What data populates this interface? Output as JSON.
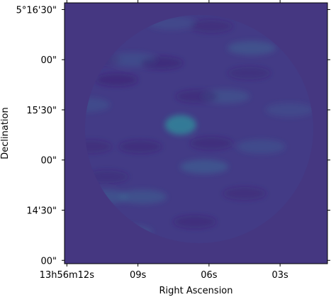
{
  "chart_data": {
    "type": "heatmap",
    "xlabel": "Right Ascension",
    "ylabel": "Declination",
    "x_ticks": [
      {
        "value": 12,
        "label": "13h56m12s"
      },
      {
        "value": 9,
        "label": "09s"
      },
      {
        "value": 6,
        "label": "06s"
      },
      {
        "value": 3,
        "label": "03s"
      }
    ],
    "y_ticks": [
      {
        "value": 0,
        "label": "00\""
      },
      {
        "value": 30,
        "label": "14'30\""
      },
      {
        "value": 60,
        "label": "00\""
      },
      {
        "value": 90,
        "label": "15'30\""
      },
      {
        "value": 120,
        "label": "00\""
      },
      {
        "value": 150,
        "label": "5°16'30\""
      }
    ],
    "x_range": [
      12.1,
      1.0
    ],
    "y_range": [
      -2,
      154
    ],
    "colormap": "viridis",
    "background_color": "#453781",
    "disk_color": "#433b86",
    "grid": false,
    "features": [
      {
        "name": "bright source",
        "x_s": 7.2,
        "y_arcsec": 81,
        "level": 0.95
      },
      {
        "name": "bright patch",
        "x_s": 6.2,
        "y_arcsec": 56,
        "level": 0.55
      },
      {
        "name": "bright patch",
        "x_s": 4.2,
        "y_arcsec": 127,
        "level": 0.5
      },
      {
        "name": "bright patch",
        "x_s": 8.8,
        "y_arcsec": 38,
        "level": 0.45
      },
      {
        "name": "bright patch",
        "x_s": 10.4,
        "y_arcsec": 38,
        "level": 0.45
      },
      {
        "name": "bright patch",
        "x_s": 9.4,
        "y_arcsec": 17,
        "level": 0.4
      },
      {
        "name": "bright patch",
        "x_s": 5.3,
        "y_arcsec": 98,
        "level": 0.4
      },
      {
        "name": "bright patch",
        "x_s": 11.2,
        "y_arcsec": 93,
        "level": 0.35
      },
      {
        "name": "bright patch",
        "x_s": 3.8,
        "y_arcsec": 68,
        "level": 0.35
      },
      {
        "name": "bright patch",
        "x_s": 9.2,
        "y_arcsec": 120,
        "level": 0.35
      },
      {
        "name": "bright patch",
        "x_s": 7.6,
        "y_arcsec": 142,
        "level": 0.3
      },
      {
        "name": "bright patch",
        "x_s": 2.6,
        "y_arcsec": 90,
        "level": 0.3
      },
      {
        "name": "dark patch",
        "x_s": 9.9,
        "y_arcsec": 108,
        "level": -0.6
      },
      {
        "name": "dark patch",
        "x_s": 8.0,
        "y_arcsec": 118,
        "level": -0.55
      },
      {
        "name": "dark patch",
        "x_s": 6.5,
        "y_arcsec": 98,
        "level": -0.5
      },
      {
        "name": "dark patch",
        "x_s": 8.9,
        "y_arcsec": 68,
        "level": -0.5
      },
      {
        "name": "dark patch",
        "x_s": 5.9,
        "y_arcsec": 70,
        "level": -0.5
      },
      {
        "name": "dark patch",
        "x_s": 11.0,
        "y_arcsec": 68,
        "level": -0.45
      },
      {
        "name": "dark patch",
        "x_s": 6.6,
        "y_arcsec": 23,
        "level": -0.5
      },
      {
        "name": "dark patch",
        "x_s": 4.5,
        "y_arcsec": 40,
        "level": -0.45
      },
      {
        "name": "dark patch",
        "x_s": 5.9,
        "y_arcsec": 140,
        "level": -0.45
      },
      {
        "name": "dark patch",
        "x_s": 4.3,
        "y_arcsec": 112,
        "level": -0.4
      },
      {
        "name": "dark patch",
        "x_s": 10.3,
        "y_arcsec": 50,
        "level": -0.4
      },
      {
        "name": "dark patch",
        "x_s": 10.6,
        "y_arcsec": 120,
        "level": -0.35
      }
    ]
  }
}
